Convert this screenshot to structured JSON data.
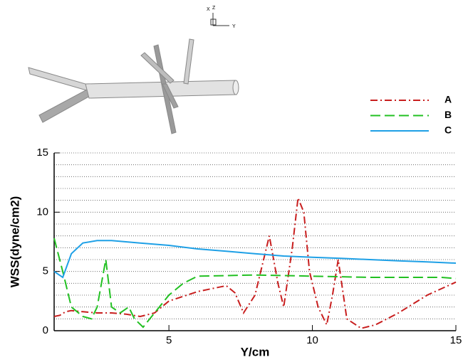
{
  "chart_data": {
    "type": "line",
    "ylabel": "WSS(dyne/cm2)",
    "xlabel": "Y/cm",
    "xlim": [
      1,
      15
    ],
    "ylim": [
      0,
      15
    ],
    "xticks": [
      5,
      10,
      15
    ],
    "yticks": [
      0,
      5,
      10,
      15
    ],
    "minor_yticks": [
      1,
      2,
      3,
      4,
      6,
      7,
      8,
      9,
      11,
      12,
      13,
      14
    ],
    "grid": true,
    "legend": "top-right",
    "triad": {
      "x": "X",
      "z": "Z",
      "y": "Y"
    },
    "series": [
      {
        "name": "A",
        "color": "#c81e1e",
        "dash": "10,4,2,4",
        "x": [
          1,
          1.2,
          1.4,
          1.6,
          2,
          2.5,
          3,
          3.5,
          4,
          4.5,
          5,
          6,
          7,
          7.3,
          7.6,
          8,
          8.5,
          8.8,
          9,
          9.3,
          9.5,
          9.7,
          9.9,
          10.2,
          10.5,
          10.7,
          10.9,
          11.2,
          11.7,
          12.2,
          13,
          14,
          15
        ],
        "values": [
          1.2,
          1.3,
          1.6,
          1.7,
          1.6,
          1.5,
          1.5,
          1.4,
          1.2,
          1.5,
          2.5,
          3.3,
          3.8,
          3.2,
          1.5,
          3,
          8,
          4,
          2,
          7,
          11.2,
          10,
          5,
          2,
          0.5,
          3,
          6,
          1,
          0.2,
          0.5,
          1.5,
          3,
          4.1
        ]
      },
      {
        "name": "B",
        "color": "#22c022",
        "dash": "14,6",
        "x": [
          1,
          1.3,
          1.6,
          2,
          2.3,
          2.5,
          2.8,
          3,
          3.3,
          3.6,
          3.8,
          4.1,
          4.5,
          5,
          5.5,
          6,
          8,
          10,
          12,
          14.5,
          15
        ],
        "values": [
          7.8,
          5,
          2,
          1.2,
          1,
          2,
          6,
          2,
          1.5,
          2,
          1,
          0.3,
          1.5,
          3,
          4,
          4.6,
          4.7,
          4.6,
          4.5,
          4.5,
          4.4
        ]
      },
      {
        "name": "C",
        "color": "#1ea0e6",
        "dash": "",
        "x": [
          1,
          1.3,
          1.6,
          2,
          2.5,
          3,
          4,
          5,
          6,
          7,
          8,
          9,
          10,
          11,
          12,
          13,
          14,
          15
        ],
        "values": [
          5,
          4.5,
          6.5,
          7.4,
          7.6,
          7.6,
          7.4,
          7.2,
          6.9,
          6.7,
          6.5,
          6.3,
          6.2,
          6.1,
          6,
          5.9,
          5.8,
          5.7
        ]
      }
    ]
  }
}
